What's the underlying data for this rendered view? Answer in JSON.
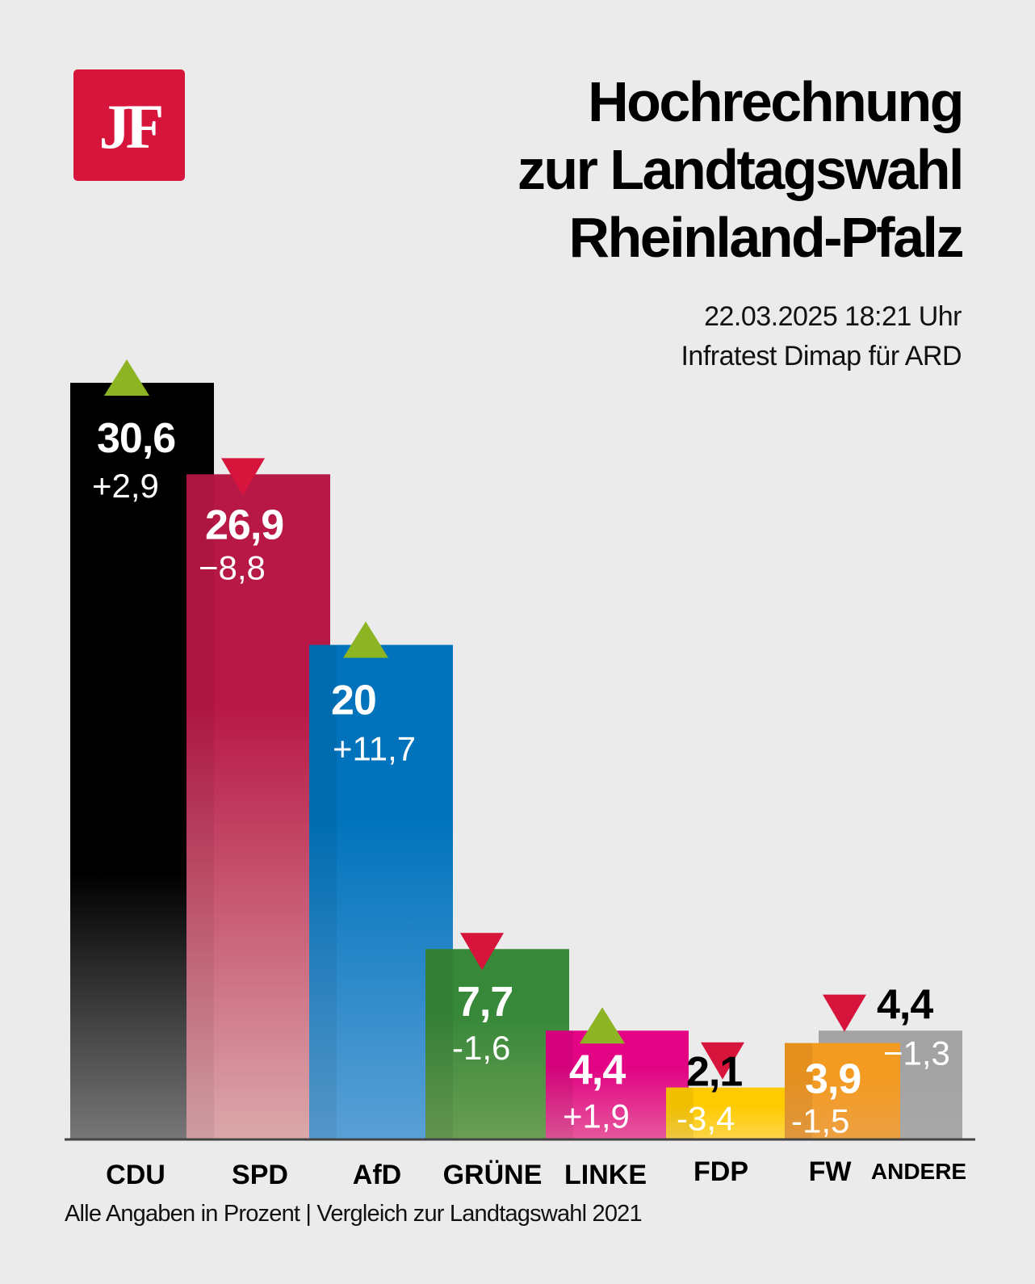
{
  "logo": {
    "text": "JF",
    "color": "#d7143c"
  },
  "header": {
    "title_lines": [
      "Hochrechnung",
      "zur Landtagswahl",
      "Rheinland-Pfalz"
    ],
    "datetime": "22.03.2025 18:21 Uhr",
    "source": "Infratest Dimap für ARD"
  },
  "footnote": "Alle Angaben in Prozent | Vergleich zur Landtagswahl 2021",
  "colors": {
    "background": "#ebebeb",
    "arrow_up": "#8cb423",
    "arrow_down": "#d7143c"
  },
  "chart_data": {
    "type": "bar",
    "title": "Hochrechnung zur Landtagswahl Rheinland-Pfalz",
    "xlabel": "",
    "ylabel": "Prozent",
    "ylim": [
      0,
      31
    ],
    "grid": false,
    "categories": [
      "CDU",
      "SPD",
      "AfD",
      "GRÜNE",
      "LINKE",
      "FDP",
      "FW",
      "ANDERE"
    ],
    "values": [
      30.6,
      26.9,
      20,
      7.7,
      4.4,
      2.1,
      3.9,
      4.4
    ],
    "value_labels": [
      "30,6",
      "26,9",
      "20",
      "7,7",
      "4,4",
      "2,1",
      "3,9",
      "4,4"
    ],
    "changes": [
      2.9,
      -8.8,
      11.7,
      -1.6,
      1.9,
      -3.4,
      -1.5,
      -1.3
    ],
    "change_labels": [
      "+2,9",
      "−8,8",
      "+11,7",
      "-1,6",
      "+1,9",
      "-3,4",
      "-1,5",
      "−1,3"
    ],
    "trend": [
      "up",
      "down",
      "up",
      "down",
      "up",
      "down",
      "down",
      "none"
    ],
    "bar_colors": [
      {
        "top": "#000000",
        "bottom": "#777777"
      },
      {
        "top": "#b81846",
        "bottom": "#dba8ab"
      },
      {
        "top": "#0073bc",
        "bottom": "#5aa0d6"
      },
      {
        "top": "#38883a",
        "bottom": "#6a9e54"
      },
      {
        "top": "#e20484",
        "bottom": "#e6589c"
      },
      {
        "top": "#fecb00",
        "bottom": "#fdd54a"
      },
      {
        "top": "#f39a21",
        "bottom": "#eda042"
      },
      {
        "top": "#a3a3a3",
        "bottom": "#a8a8a8"
      }
    ],
    "comparison_note": "Vergleich zur Landtagswahl 2021"
  }
}
